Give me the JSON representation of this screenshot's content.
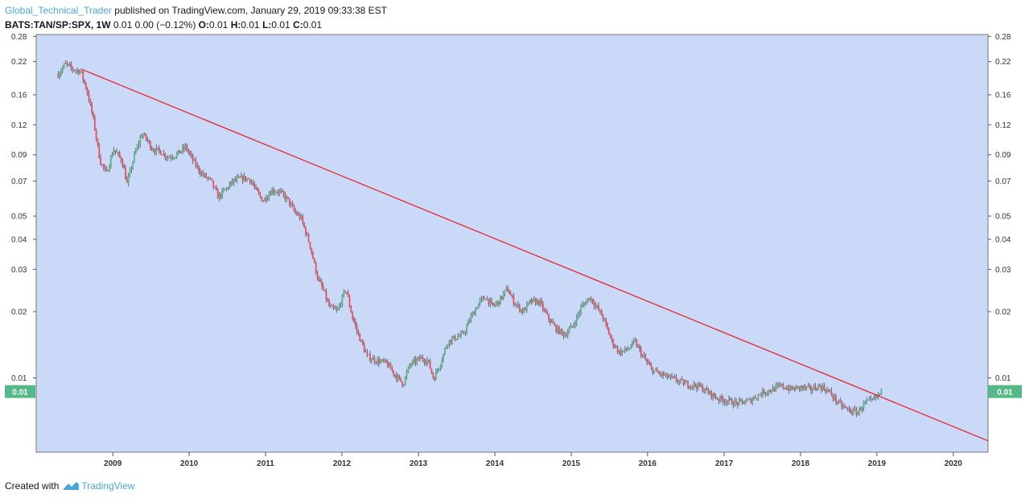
{
  "header": {
    "author": "Global_Technical_Trader",
    "published": " published on TradingView.com, January 29, 2019 09:33:38 EST",
    "symbol": "BATS:TAN/SP:SPX, 1W",
    "change": "0.01 0.00 (−0.12%)",
    "o_label": "O:",
    "o_value": "0.01",
    "h_label": "H:",
    "h_value": "0.01",
    "l_label": "L:",
    "l_value": "0.01",
    "c_label": "C:",
    "c_value": "0.01"
  },
  "footer": {
    "created_with": "Created with",
    "brand": "TradingView"
  },
  "colors": {
    "plot_bg": "#c9d9f7",
    "up": "#53b987",
    "down": "#eb4d5c",
    "trendline": "#e8262e",
    "price_badge": "#53b987"
  },
  "chart_data": {
    "type": "candlestick",
    "y_scale": "log",
    "ylim": [
      0.0052,
      0.285
    ],
    "xlim": [
      "2008-01-01",
      "2020-06-15"
    ],
    "yticks": [
      "0.28",
      "0.22",
      "0.16",
      "0.12",
      "0.09",
      "0.07",
      "0.05",
      "0.04",
      "0.03",
      "0.02",
      "0.01"
    ],
    "ytick_values": [
      0.28,
      0.22,
      0.16,
      0.12,
      0.09,
      0.07,
      0.05,
      0.04,
      0.03,
      0.02,
      0.0106
    ],
    "xticks": [
      "2009",
      "2010",
      "2011",
      "2012",
      "2013",
      "2014",
      "2015",
      "2016",
      "2017",
      "2018",
      "2019",
      "2020"
    ],
    "xtick_dates": [
      "2009-01-01",
      "2010-01-01",
      "2011-01-01",
      "2012-01-01",
      "2013-01-01",
      "2014-01-01",
      "2015-01-01",
      "2016-01-01",
      "2017-01-01",
      "2018-01-01",
      "2019-01-01",
      "2020-01-01"
    ],
    "last_price_label": "0.01",
    "last_price_value": 0.0093,
    "trendline": {
      "start": [
        "2008-08-01",
        0.205
      ],
      "end": [
        "2020-06-15",
        0.0058
      ]
    },
    "price_path": [
      [
        "2008-04-15",
        0.195
      ],
      [
        "2008-05-20",
        0.215
      ],
      [
        "2008-06-20",
        0.205
      ],
      [
        "2008-08-01",
        0.2
      ],
      [
        "2008-09-01",
        0.165
      ],
      [
        "2008-10-01",
        0.125
      ],
      [
        "2008-11-01",
        0.085
      ],
      [
        "2008-12-01",
        0.075
      ],
      [
        "2009-01-05",
        0.095
      ],
      [
        "2009-02-15",
        0.085
      ],
      [
        "2009-03-10",
        0.068
      ],
      [
        "2009-04-15",
        0.09
      ],
      [
        "2009-05-20",
        0.11
      ],
      [
        "2009-06-10",
        0.105
      ],
      [
        "2009-07-10",
        0.095
      ],
      [
        "2009-08-15",
        0.093
      ],
      [
        "2009-09-20",
        0.088
      ],
      [
        "2009-11-01",
        0.09
      ],
      [
        "2009-12-15",
        0.097
      ],
      [
        "2010-01-20",
        0.085
      ],
      [
        "2010-03-01",
        0.075
      ],
      [
        "2010-04-15",
        0.07
      ],
      [
        "2010-05-20",
        0.06
      ],
      [
        "2010-06-20",
        0.064
      ],
      [
        "2010-08-01",
        0.07
      ],
      [
        "2010-09-15",
        0.072
      ],
      [
        "2010-10-20",
        0.071
      ],
      [
        "2010-11-20",
        0.063
      ],
      [
        "2010-12-20",
        0.058
      ],
      [
        "2011-02-01",
        0.064
      ],
      [
        "2011-03-10",
        0.063
      ],
      [
        "2011-04-20",
        0.058
      ],
      [
        "2011-05-20",
        0.052
      ],
      [
        "2011-06-20",
        0.049
      ],
      [
        "2011-08-01",
        0.038
      ],
      [
        "2011-09-10",
        0.027
      ],
      [
        "2011-10-01",
        0.025
      ],
      [
        "2011-11-01",
        0.021
      ],
      [
        "2011-12-10",
        0.02
      ],
      [
        "2012-01-20",
        0.025
      ],
      [
        "2012-02-20",
        0.019
      ],
      [
        "2012-03-20",
        0.016
      ],
      [
        "2012-05-01",
        0.013
      ],
      [
        "2012-06-15",
        0.0125
      ],
      [
        "2012-08-01",
        0.0122
      ],
      [
        "2012-09-15",
        0.0108
      ],
      [
        "2012-10-20",
        0.01
      ],
      [
        "2012-11-20",
        0.012
      ],
      [
        "2013-01-10",
        0.0128
      ],
      [
        "2013-02-15",
        0.0125
      ],
      [
        "2013-03-15",
        0.0105
      ],
      [
        "2013-04-20",
        0.0125
      ],
      [
        "2013-05-20",
        0.015
      ],
      [
        "2013-06-20",
        0.0155
      ],
      [
        "2013-08-01",
        0.016
      ],
      [
        "2013-09-10",
        0.019
      ],
      [
        "2013-10-20",
        0.022
      ],
      [
        "2013-11-20",
        0.023
      ],
      [
        "2013-12-20",
        0.021
      ],
      [
        "2014-01-20",
        0.022
      ],
      [
        "2014-03-01",
        0.025
      ],
      [
        "2014-04-01",
        0.022
      ],
      [
        "2014-05-15",
        0.02
      ],
      [
        "2014-06-20",
        0.022
      ],
      [
        "2014-08-01",
        0.022
      ],
      [
        "2014-09-10",
        0.019
      ],
      [
        "2014-10-20",
        0.017
      ],
      [
        "2014-12-01",
        0.016
      ],
      [
        "2015-01-10",
        0.0175
      ],
      [
        "2015-02-20",
        0.021
      ],
      [
        "2015-04-01",
        0.023
      ],
      [
        "2015-05-01",
        0.021
      ],
      [
        "2015-06-01",
        0.019
      ],
      [
        "2015-07-15",
        0.015
      ],
      [
        "2015-08-20",
        0.0135
      ],
      [
        "2015-10-01",
        0.014
      ],
      [
        "2015-11-01",
        0.015
      ],
      [
        "2015-12-10",
        0.013
      ],
      [
        "2016-01-20",
        0.0115
      ],
      [
        "2016-03-01",
        0.011
      ],
      [
        "2016-05-01",
        0.0105
      ],
      [
        "2016-07-01",
        0.01
      ],
      [
        "2016-09-01",
        0.0098
      ],
      [
        "2016-10-20",
        0.0092
      ],
      [
        "2016-12-01",
        0.0087
      ],
      [
        "2017-01-20",
        0.0085
      ],
      [
        "2017-03-01",
        0.0083
      ],
      [
        "2017-05-01",
        0.0085
      ],
      [
        "2017-07-01",
        0.0092
      ],
      [
        "2017-08-20",
        0.0095
      ],
      [
        "2017-10-01",
        0.0098
      ],
      [
        "2017-11-20",
        0.0095
      ],
      [
        "2018-01-01",
        0.0097
      ],
      [
        "2018-02-20",
        0.0095
      ],
      [
        "2018-04-01",
        0.0098
      ],
      [
        "2018-05-01",
        0.0095
      ],
      [
        "2018-06-01",
        0.009
      ],
      [
        "2018-07-01",
        0.0083
      ],
      [
        "2018-08-15",
        0.0078
      ],
      [
        "2018-10-01",
        0.0076
      ],
      [
        "2018-11-01",
        0.0083
      ],
      [
        "2018-12-10",
        0.0085
      ],
      [
        "2019-01-25",
        0.0093
      ]
    ]
  }
}
